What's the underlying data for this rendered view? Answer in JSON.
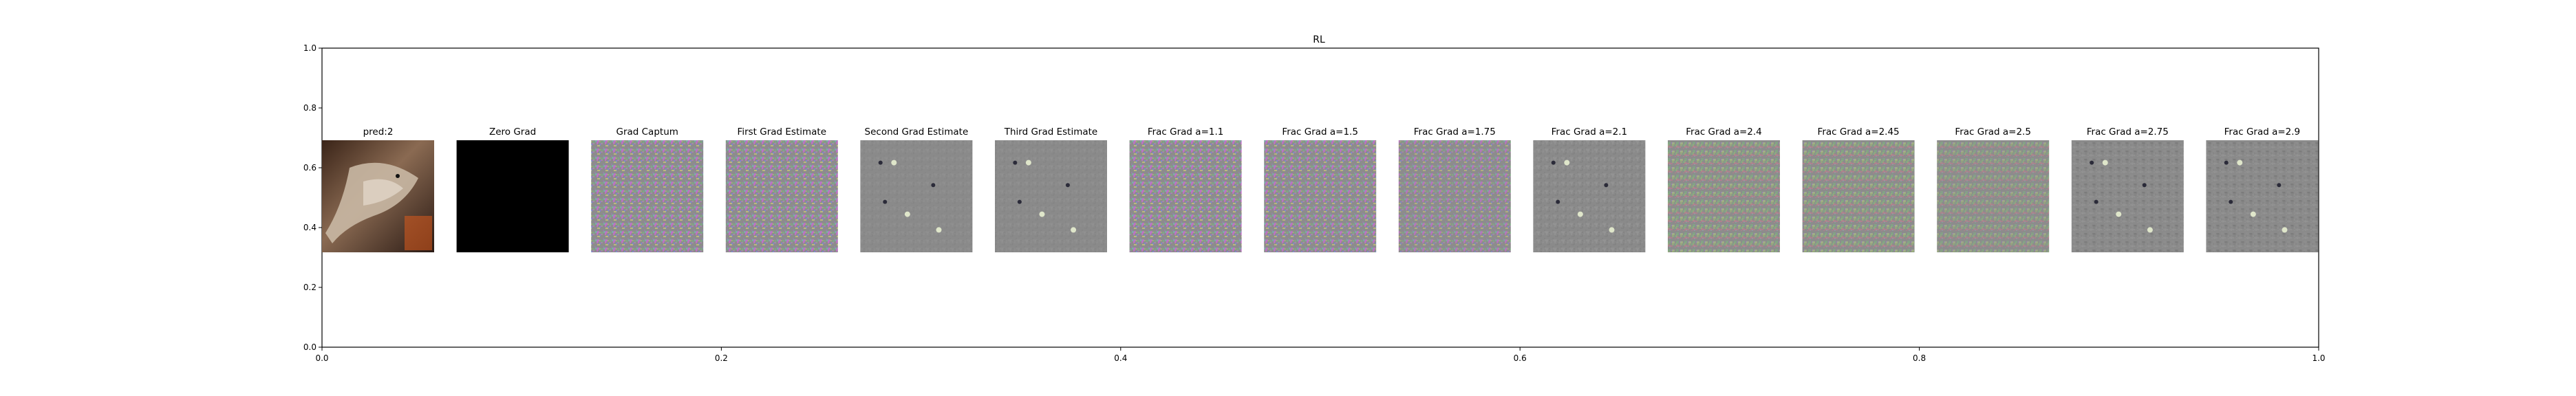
{
  "chart_data": {
    "type": "image-grid",
    "title": "RL",
    "xlim": [
      0,
      1
    ],
    "ylim": [
      0,
      1
    ],
    "xticks": [
      "0.0",
      "0.2",
      "0.4",
      "0.6",
      "0.8",
      "1.0"
    ],
    "yticks": [
      "0.0",
      "0.2",
      "0.4",
      "0.6",
      "0.8",
      "1.0"
    ],
    "panels": [
      {
        "title": "pred:2",
        "kind": "photo"
      },
      {
        "title": "Zero Grad",
        "kind": "black"
      },
      {
        "title": "Grad Captum",
        "kind": "color-noise",
        "intensity": 0.9
      },
      {
        "title": "First Grad Estimate",
        "kind": "color-noise",
        "intensity": 0.9
      },
      {
        "title": "Second Grad Estimate",
        "kind": "gray-sparse",
        "intensity": 0.25
      },
      {
        "title": "Third Grad Estimate",
        "kind": "gray-sparse",
        "intensity": 0.3
      },
      {
        "title": "Frac Grad a=1.1",
        "kind": "color-noise",
        "intensity": 0.9
      },
      {
        "title": "Frac Grad a=1.5",
        "kind": "color-noise",
        "intensity": 0.85
      },
      {
        "title": "Frac Grad a=1.75",
        "kind": "color-noise",
        "intensity": 0.7
      },
      {
        "title": "Frac Grad a=2.1",
        "kind": "gray-sparse",
        "intensity": 0.45
      },
      {
        "title": "Frac Grad a=2.4",
        "kind": "color-noise",
        "intensity": 0.6
      },
      {
        "title": "Frac Grad a=2.45",
        "kind": "color-noise",
        "intensity": 0.6
      },
      {
        "title": "Frac Grad a=2.5",
        "kind": "color-noise",
        "intensity": 0.5
      },
      {
        "title": "Frac Grad a=2.75",
        "kind": "gray-sparse",
        "intensity": 0.35
      },
      {
        "title": "Frac Grad a=2.9",
        "kind": "gray-sparse",
        "intensity": 0.35
      }
    ]
  }
}
